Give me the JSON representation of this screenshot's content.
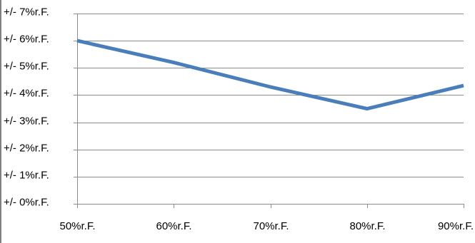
{
  "chart_data": {
    "type": "line",
    "categories": [
      "50%r.F.",
      "60%r.F.",
      "70%r.F.",
      "80%r.F.",
      "90%r.F."
    ],
    "series": [
      {
        "values": [
          6.0,
          5.2,
          4.3,
          3.5,
          4.35
        ]
      }
    ],
    "y_ticks": [
      {
        "value": 0,
        "label": "+/- 0%r.F."
      },
      {
        "value": 1,
        "label": "+/- 1%r.F."
      },
      {
        "value": 2,
        "label": "+/- 2%r.F."
      },
      {
        "value": 3,
        "label": "+/- 3%r.F."
      },
      {
        "value": 4,
        "label": "+/- 4%r.F."
      },
      {
        "value": 5,
        "label": "+/- 5%r.F."
      },
      {
        "value": 6,
        "label": "+/- 6%r.F."
      },
      {
        "value": 7,
        "label": "+/- 7%r.F."
      }
    ],
    "ylim": [
      0,
      7
    ],
    "grid": "horizontal",
    "legend": "none",
    "colors": {
      "line": "#4a7ebb",
      "grid": "#8c8c8c",
      "axis": "#8c8c8c",
      "frame": "#000000"
    }
  }
}
